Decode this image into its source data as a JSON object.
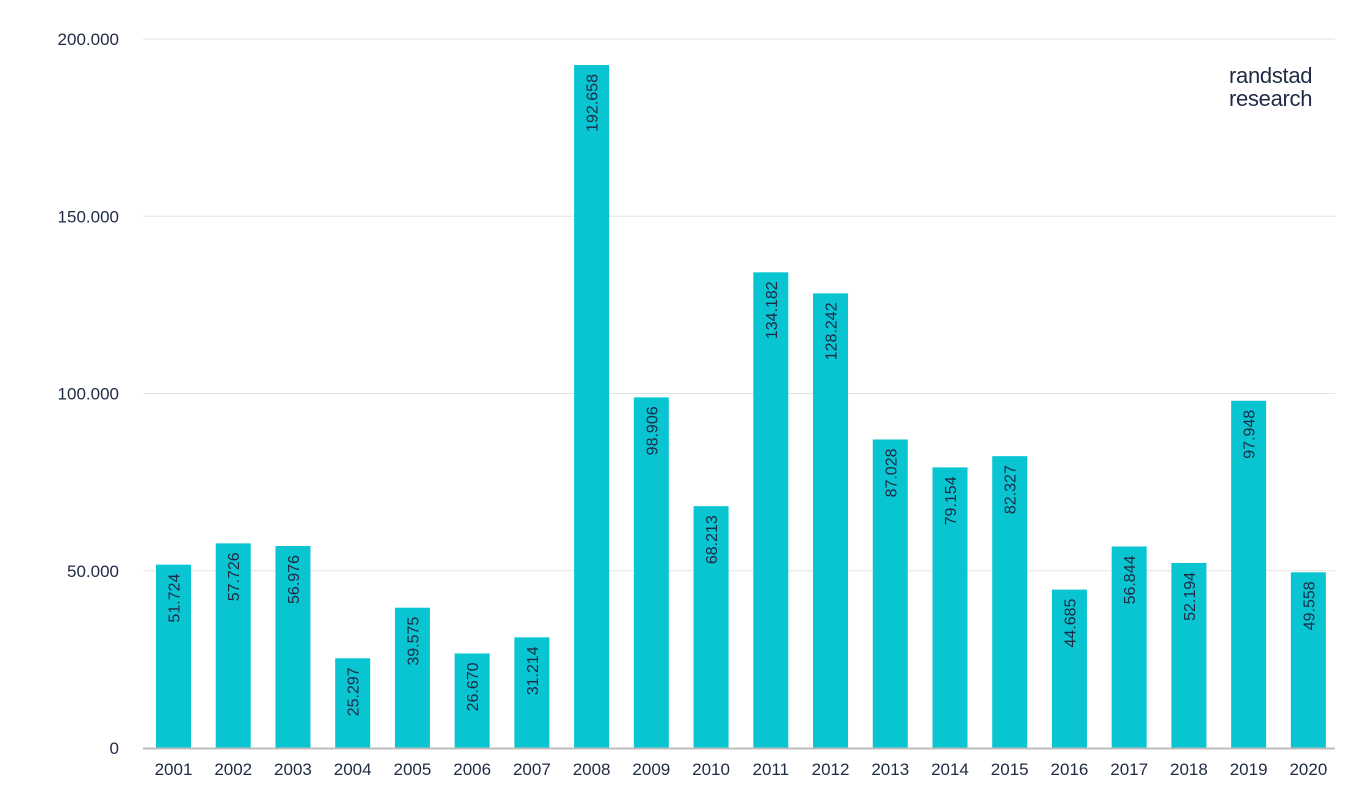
{
  "brand": {
    "line1": "randstad",
    "line2": "research"
  },
  "colors": {
    "bar": "#08c5d1",
    "grid": "#e3e3e3",
    "axis": "#bdbdbd",
    "text": "#1f2a44"
  },
  "chart_data": {
    "type": "bar",
    "title": "",
    "xlabel": "",
    "ylabel": "",
    "ylim": [
      0,
      200000
    ],
    "yticks": [
      0,
      50000,
      100000,
      150000,
      200000
    ],
    "ytick_labels": [
      "0",
      "50.000",
      "100.000",
      "150.000",
      "200.000"
    ],
    "grid": true,
    "categories": [
      "2001",
      "2002",
      "2003",
      "2004",
      "2005",
      "2006",
      "2007",
      "2008",
      "2009",
      "2010",
      "2011",
      "2012",
      "2013",
      "2014",
      "2015",
      "2016",
      "2017",
      "2018",
      "2019",
      "2020"
    ],
    "values": [
      51724,
      57726,
      56976,
      25297,
      39575,
      26670,
      31214,
      192658,
      98906,
      68213,
      134182,
      128242,
      87028,
      79154,
      82327,
      44685,
      56844,
      52194,
      97948,
      49558
    ],
    "data_labels": [
      "51.724",
      "57.726",
      "56.976",
      "25.297",
      "39.575",
      "26.670",
      "31.214",
      "192.658",
      "98.906",
      "68.213",
      "134.182",
      "128.242",
      "87.028",
      "79.154",
      "82.327",
      "44.685",
      "56.844",
      "52.194",
      "97.948",
      "49.558"
    ]
  }
}
